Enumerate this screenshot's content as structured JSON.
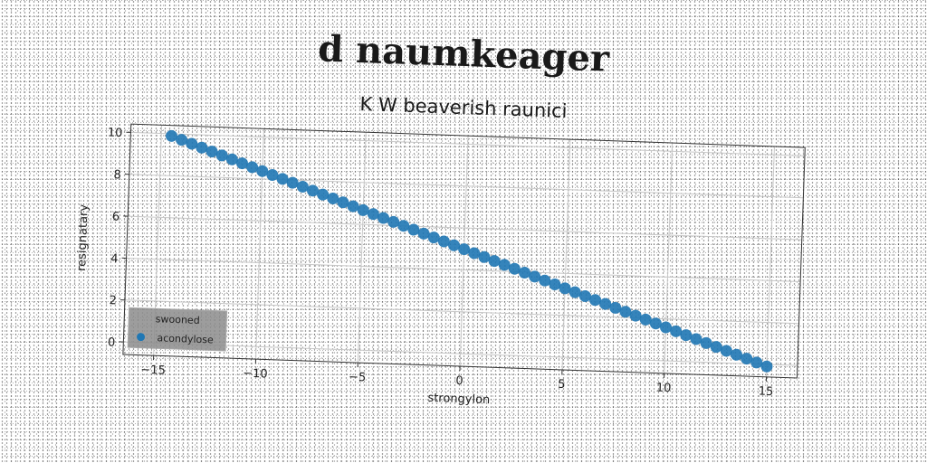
{
  "title": "d naumkeager",
  "subtitle": "K W beaverish raunici",
  "chart_data": {
    "type": "scatter",
    "xlabel": "strongylon",
    "ylabel": "resignatary",
    "xlim": [
      -16.5,
      16.5
    ],
    "ylim": [
      -0.6,
      10.4
    ],
    "x_ticks": [
      -15,
      -10,
      -5,
      0,
      5,
      10,
      15
    ],
    "y_ticks": [
      0,
      2,
      4,
      6,
      8,
      10
    ],
    "grid": true,
    "legend": {
      "title": "swooned",
      "placement": "lower-left",
      "entries": [
        {
          "label": "acondylose"
        }
      ]
    },
    "series": [
      {
        "name": "acondylose",
        "color": "#1f77b4",
        "x_start": -14.5,
        "x_end": 15.0,
        "y_start": 9.9,
        "y_end": -0.1,
        "count": 60
      }
    ]
  }
}
